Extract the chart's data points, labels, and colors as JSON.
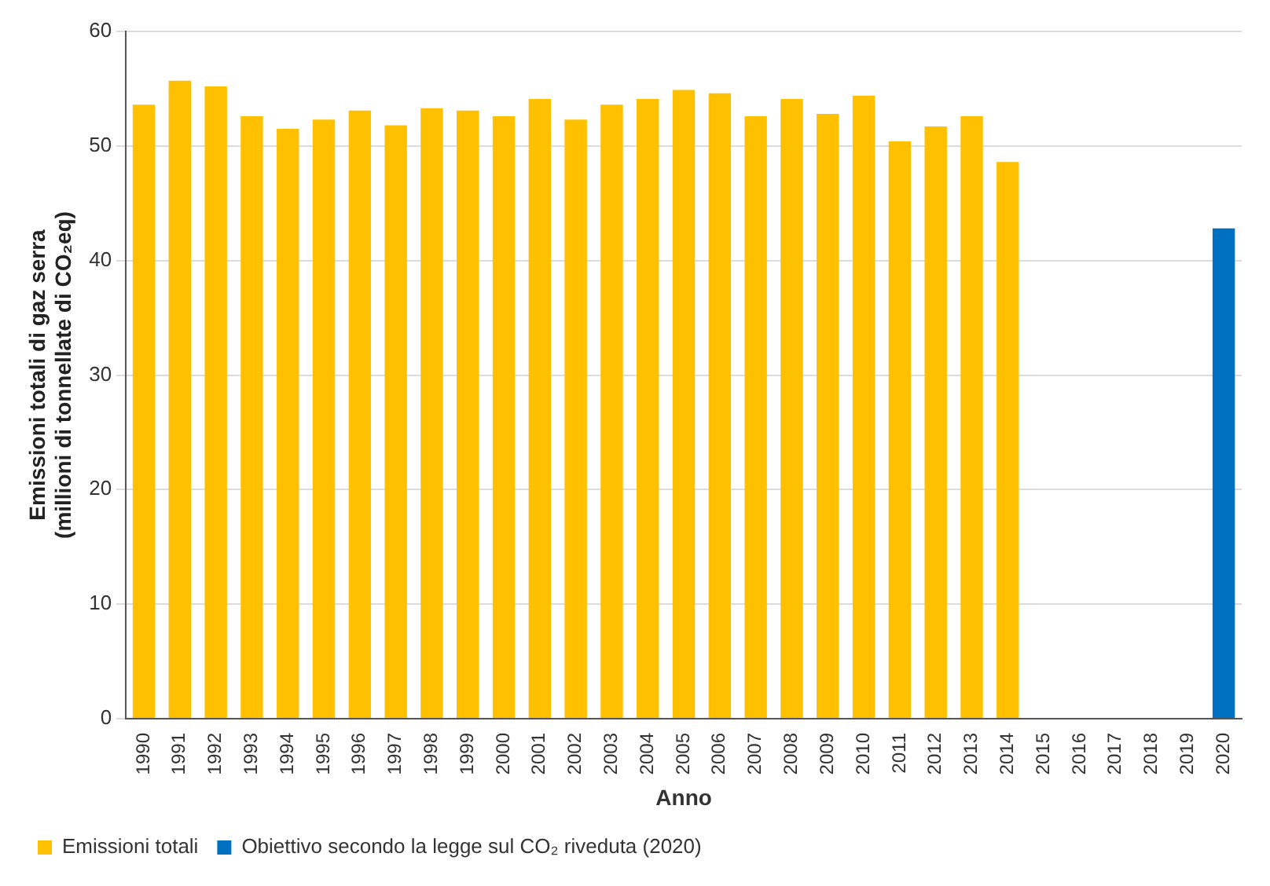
{
  "chart_data": {
    "type": "bar",
    "xlabel": "Anno",
    "ylabel": "Emissioni totali di gaz serra\n(millioni di tonnellate di CO₂eq)",
    "categories": [
      "1990",
      "1991",
      "1992",
      "1993",
      "1994",
      "1995",
      "1996",
      "1997",
      "1998",
      "1999",
      "2000",
      "2001",
      "2002",
      "2003",
      "2004",
      "2005",
      "2006",
      "2007",
      "2008",
      "2009",
      "2010",
      "2011",
      "2012",
      "2013",
      "2014",
      "2015",
      "2016",
      "2017",
      "2018",
      "2019",
      "2020"
    ],
    "series": [
      {
        "name": "Emissioni totali",
        "color": "#ffc000",
        "values": [
          53.6,
          55.7,
          55.2,
          52.6,
          51.5,
          52.3,
          53.1,
          51.8,
          53.3,
          53.1,
          52.6,
          54.1,
          52.3,
          53.6,
          54.1,
          54.9,
          54.6,
          52.6,
          54.1,
          52.8,
          54.4,
          50.4,
          51.7,
          52.6,
          48.6,
          null,
          null,
          null,
          null,
          null,
          null
        ]
      },
      {
        "name": "Obiettivo secondo la legge sul CO₂ riveduta (2020)",
        "color": "#0070c0",
        "values": [
          null,
          null,
          null,
          null,
          null,
          null,
          null,
          null,
          null,
          null,
          null,
          null,
          null,
          null,
          null,
          null,
          null,
          null,
          null,
          null,
          null,
          null,
          null,
          null,
          null,
          null,
          null,
          null,
          null,
          null,
          42.8
        ]
      }
    ],
    "ylim": [
      0,
      60
    ],
    "yticks": [
      0,
      10,
      20,
      30,
      40,
      50,
      60
    ],
    "grid": "y",
    "legend": "bottom left"
  }
}
